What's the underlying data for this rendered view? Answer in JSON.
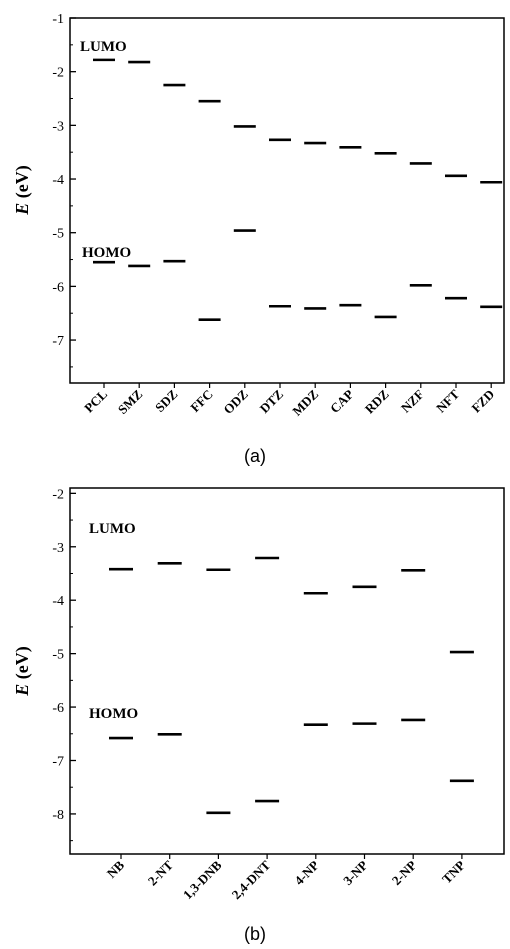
{
  "chart_data": [
    {
      "type": "scatter",
      "panel_label": "(a)",
      "ylabel": "E (eV)",
      "ylim": [
        -7.8,
        -1
      ],
      "yticks": [
        -1,
        -2,
        -3,
        -4,
        -5,
        -6,
        -7
      ],
      "categories": [
        "PCL",
        "SMZ",
        "SDZ",
        "FFC",
        "ODZ",
        "DTZ",
        "MDZ",
        "CAP",
        "RDZ",
        "NZF",
        "NFT",
        "FZD"
      ],
      "series": [
        {
          "name": "LUMO",
          "values": [
            -1.78,
            -1.82,
            -2.25,
            -2.55,
            -3.02,
            -3.27,
            -3.33,
            -3.41,
            -3.52,
            -3.71,
            -3.94,
            -4.06
          ]
        },
        {
          "name": "HOMO",
          "values": [
            -5.55,
            -5.62,
            -5.53,
            -6.62,
            -4.96,
            -6.37,
            -6.41,
            -6.35,
            -6.57,
            -5.98,
            -6.22,
            -6.38
          ]
        }
      ]
    },
    {
      "type": "scatter",
      "panel_label": "(b)",
      "ylabel": "E (eV)",
      "ylim": [
        -8.75,
        -1.9
      ],
      "yticks": [
        -2,
        -3,
        -4,
        -5,
        -6,
        -7,
        -8
      ],
      "categories": [
        "NB",
        "2-NT",
        "1,3-DNB",
        "2,4-DNT",
        "4-NP",
        "3-NP",
        "2-NP",
        "TNP"
      ],
      "series": [
        {
          "name": "LUMO",
          "values": [
            -3.42,
            -3.31,
            -3.43,
            -3.21,
            -3.87,
            -3.75,
            -3.44,
            -4.97
          ]
        },
        {
          "name": "HOMO",
          "values": [
            -6.58,
            -6.51,
            -7.98,
            -7.76,
            -6.33,
            -6.31,
            -6.24,
            -7.38
          ]
        }
      ]
    }
  ]
}
